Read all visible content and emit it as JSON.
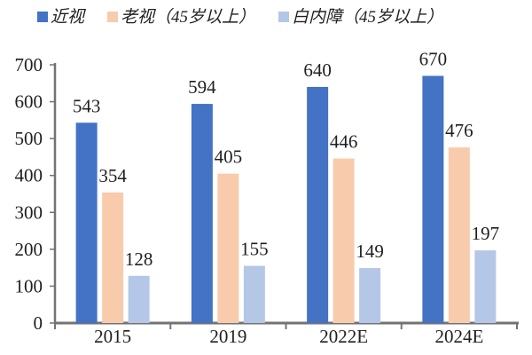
{
  "chart_data": {
    "type": "bar",
    "categories": [
      "2015",
      "2019",
      "2022E",
      "2024E"
    ],
    "series": [
      {
        "key": "myopia",
        "name": "近视",
        "color": "#4472C4",
        "values": [
          543,
          594,
          640,
          670
        ]
      },
      {
        "key": "presbyopia",
        "name": "老视（45岁以上）",
        "color": "#F8CBAD",
        "values": [
          354,
          405,
          446,
          476
        ]
      },
      {
        "key": "cataract",
        "name": "白内障（45岁以上）",
        "color": "#B4C7E7",
        "values": [
          128,
          155,
          149,
          197
        ]
      }
    ],
    "title": "",
    "xlabel": "",
    "ylabel": "",
    "ylim": [
      0,
      700
    ],
    "ytick_step": 100,
    "yticks": [
      0,
      100,
      200,
      300,
      400,
      500,
      600,
      700
    ],
    "grid": false,
    "legend_position": "top",
    "value_labels_shown": true
  },
  "colors": {
    "axis": "#737373",
    "text": "#1f1f1f",
    "background": "#ffffff"
  }
}
